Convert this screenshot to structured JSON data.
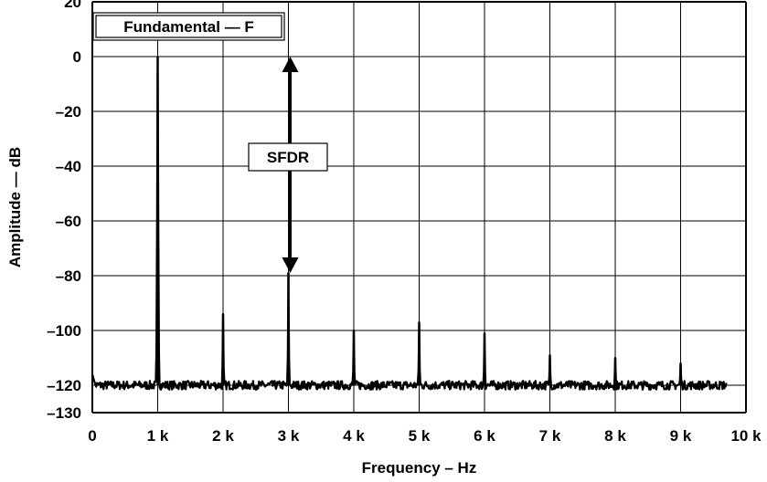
{
  "chart_data": {
    "type": "line",
    "xlabel": "Frequency – Hz",
    "ylabel": "Amplitude — dB",
    "xlim": [
      0,
      10000
    ],
    "ylim": [
      -130,
      20
    ],
    "x_ticks": [
      0,
      1000,
      2000,
      3000,
      4000,
      5000,
      6000,
      7000,
      8000,
      9000,
      10000
    ],
    "x_tick_labels": [
      "0",
      "1 k",
      "2 k",
      "3 k",
      "4 k",
      "5 k",
      "6 k",
      "7 k",
      "8 k",
      "9 k",
      "10 k"
    ],
    "y_ticks": [
      20,
      0,
      -20,
      -40,
      -60,
      -80,
      -100,
      -120,
      -130
    ],
    "y_tick_labels": [
      "20",
      "0",
      "–20",
      "–40",
      "–60",
      "–80",
      "–100",
      "–120",
      "–130"
    ],
    "grid": true,
    "line_color": "#000000",
    "noise_floor_db": -120,
    "spectrum_end_hz": 9700,
    "peaks": [
      {
        "x": 1000,
        "y": 0
      },
      {
        "x": 2000,
        "y": -94
      },
      {
        "x": 3000,
        "y": -79
      },
      {
        "x": 4000,
        "y": -100
      },
      {
        "x": 5000,
        "y": -97
      },
      {
        "x": 6000,
        "y": -101
      },
      {
        "x": 7000,
        "y": -109
      },
      {
        "x": 8000,
        "y": -110
      },
      {
        "x": 9000,
        "y": -112
      }
    ],
    "annotations": [
      {
        "text": "Fundamental — F",
        "type": "box"
      },
      {
        "text": "SFDR",
        "type": "double-arrow",
        "x": 3000,
        "y_from": 0,
        "y_to": -79
      }
    ]
  }
}
